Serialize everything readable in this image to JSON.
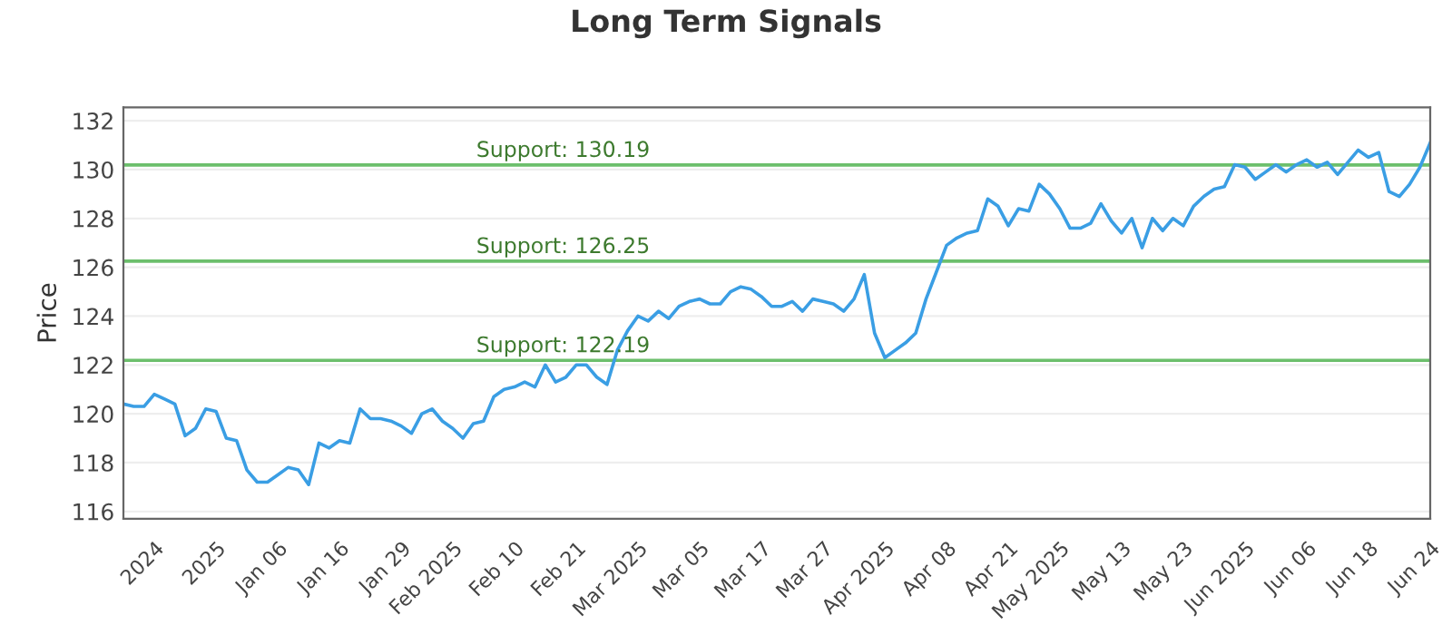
{
  "chart_data": {
    "type": "line",
    "title": "Long Term Signals",
    "ylabel": "Price",
    "categories": [
      null,
      null,
      null,
      "2024",
      null,
      null,
      null,
      null,
      null,
      "2025",
      null,
      null,
      null,
      null,
      null,
      "Jan 06",
      null,
      null,
      null,
      null,
      null,
      "Jan 16",
      null,
      null,
      null,
      null,
      null,
      "Jan 29",
      null,
      null,
      null,
      null,
      "Feb 2025",
      null,
      null,
      null,
      null,
      null,
      "Feb 10",
      null,
      null,
      null,
      null,
      null,
      "Feb 21",
      null,
      null,
      null,
      null,
      null,
      "Mar 2025",
      null,
      null,
      null,
      null,
      null,
      "Mar 05",
      null,
      null,
      null,
      null,
      null,
      "Mar 17",
      null,
      null,
      null,
      null,
      null,
      "Mar 27",
      null,
      null,
      null,
      null,
      null,
      "Apr 2025",
      null,
      null,
      null,
      null,
      null,
      "Apr 08",
      null,
      null,
      null,
      null,
      null,
      "Apr 21",
      null,
      null,
      null,
      null,
      "May 2025",
      null,
      null,
      null,
      null,
      null,
      "May 13",
      null,
      null,
      null,
      null,
      null,
      "May 23",
      null,
      null,
      null,
      null,
      null,
      "Jun 2025",
      null,
      null,
      null,
      null,
      null,
      "Jun 06",
      null,
      null,
      null,
      null,
      null,
      "Jun 18",
      null,
      null,
      null,
      null,
      null,
      "Jun 24"
    ],
    "series": [
      {
        "color": "#3a9ee4",
        "values": [
          120.4,
          120.3,
          120.3,
          120.8,
          120.6,
          120.4,
          119.1,
          119.4,
          120.2,
          120.1,
          119.0,
          118.9,
          117.7,
          117.2,
          117.2,
          117.5,
          117.8,
          117.7,
          117.1,
          118.8,
          118.6,
          118.9,
          118.8,
          120.2,
          119.8,
          119.8,
          119.7,
          119.5,
          119.2,
          120.0,
          120.2,
          119.7,
          119.4,
          119.0,
          119.6,
          119.7,
          120.7,
          121.0,
          121.1,
          121.3,
          121.1,
          122.0,
          121.3,
          121.5,
          122.0,
          122.0,
          121.5,
          121.2,
          122.6,
          123.4,
          124.0,
          123.8,
          124.2,
          123.9,
          124.4,
          124.6,
          124.7,
          124.5,
          124.5,
          125.0,
          125.2,
          125.1,
          124.8,
          124.4,
          124.4,
          124.6,
          124.2,
          124.7,
          124.6,
          124.5,
          124.2,
          124.7,
          125.7,
          123.3,
          122.3,
          122.6,
          122.9,
          123.3,
          124.7,
          125.8,
          126.9,
          127.2,
          127.4,
          127.5,
          128.8,
          128.5,
          127.7,
          128.4,
          128.3,
          129.4,
          129.0,
          128.4,
          127.6,
          127.6,
          127.8,
          128.6,
          127.9,
          127.4,
          128.0,
          126.8,
          128.0,
          127.5,
          128.0,
          127.7,
          128.5,
          128.9,
          129.2,
          129.3,
          130.2,
          130.1,
          129.6,
          129.9,
          130.2,
          129.9,
          130.2,
          130.4,
          130.1,
          130.3,
          129.8,
          130.3,
          130.8,
          130.5,
          130.7,
          129.1,
          128.9,
          129.4,
          130.1,
          131.1
        ]
      }
    ],
    "ylim": [
      115.7,
      132.55
    ],
    "yticks": [
      116,
      118,
      120,
      122,
      124,
      126,
      128,
      130,
      132
    ],
    "grid": "y",
    "legend": false,
    "marker": "none",
    "line_style": "solid",
    "ref_lines": [
      {
        "axis": "y",
        "value": 130.19,
        "label": "Support: 130.19",
        "color": "#6cbf6c"
      },
      {
        "axis": "y",
        "value": 126.25,
        "label": "Support: 126.25",
        "color": "#6cbf6c"
      },
      {
        "axis": "y",
        "value": 122.19,
        "label": "Support: 122.19",
        "color": "#6cbf6c"
      }
    ]
  }
}
